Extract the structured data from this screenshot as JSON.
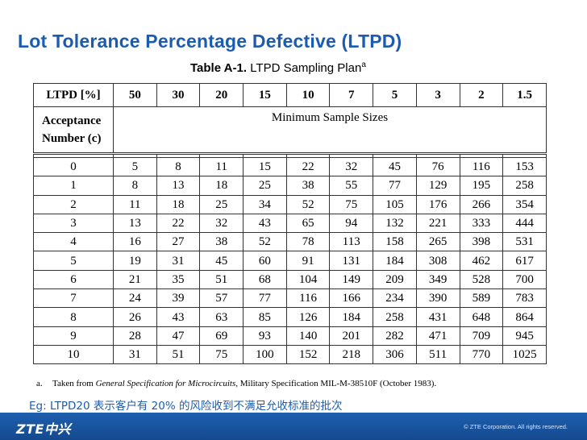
{
  "slide": {
    "title": "Lot Tolerance Percentage Defective (LTPD)",
    "eg_note": "Eg: LTPD20 表示客户有 20% 的风险收到不满足允收标准的批次"
  },
  "table": {
    "caption_bold": "Table A-1.",
    "caption_text": "LTPD Sampling Plan",
    "caption_sup": "a",
    "header_label": "LTPD [%]",
    "ltpd_values": [
      "50",
      "30",
      "20",
      "15",
      "10",
      "7",
      "5",
      "3",
      "2",
      "1.5"
    ],
    "acceptance_label_line1": "Acceptance",
    "acceptance_label_line2": "Number (c)",
    "min_sample_label": "Minimum Sample Sizes",
    "rows": [
      {
        "c": "0",
        "values": [
          "5",
          "8",
          "11",
          "15",
          "22",
          "32",
          "45",
          "76",
          "116",
          "153"
        ]
      },
      {
        "c": "1",
        "values": [
          "8",
          "13",
          "18",
          "25",
          "38",
          "55",
          "77",
          "129",
          "195",
          "258"
        ]
      },
      {
        "c": "2",
        "values": [
          "11",
          "18",
          "25",
          "34",
          "52",
          "75",
          "105",
          "176",
          "266",
          "354"
        ]
      },
      {
        "c": "3",
        "values": [
          "13",
          "22",
          "32",
          "43",
          "65",
          "94",
          "132",
          "221",
          "333",
          "444"
        ]
      },
      {
        "c": "4",
        "values": [
          "16",
          "27",
          "38",
          "52",
          "78",
          "113",
          "158",
          "265",
          "398",
          "531"
        ]
      },
      {
        "c": "5",
        "values": [
          "19",
          "31",
          "45",
          "60",
          "91",
          "131",
          "184",
          "308",
          "462",
          "617"
        ]
      },
      {
        "c": "6",
        "values": [
          "21",
          "35",
          "51",
          "68",
          "104",
          "149",
          "209",
          "349",
          "528",
          "700"
        ]
      },
      {
        "c": "7",
        "values": [
          "24",
          "39",
          "57",
          "77",
          "116",
          "166",
          "234",
          "390",
          "589",
          "783"
        ]
      },
      {
        "c": "8",
        "values": [
          "26",
          "43",
          "63",
          "85",
          "126",
          "184",
          "258",
          "431",
          "648",
          "864"
        ]
      },
      {
        "c": "9",
        "values": [
          "28",
          "47",
          "69",
          "93",
          "140",
          "201",
          "282",
          "471",
          "709",
          "945"
        ]
      },
      {
        "c": "10",
        "values": [
          "31",
          "51",
          "75",
          "100",
          "152",
          "218",
          "306",
          "511",
          "770",
          "1025"
        ]
      }
    ],
    "footnote_marker": "a.",
    "footnote_pre": "Taken from ",
    "footnote_italic": "General Specification for Microcircuits",
    "footnote_post": ", Military Specification MIL-M-38510F (October 1983)."
  },
  "footer": {
    "logo_text": "ZTE中兴",
    "copyright": "© ZTE Corporation. All rights reserved.",
    "bar_color": "#1d5fae"
  }
}
